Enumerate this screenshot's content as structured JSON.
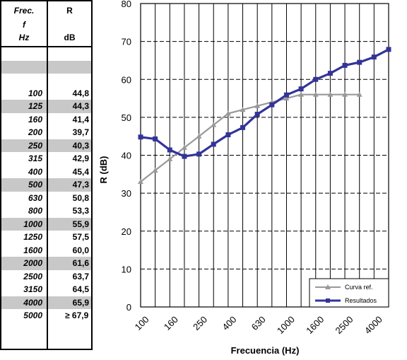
{
  "table": {
    "header_freq": [
      "Frec.",
      "f",
      "Hz"
    ],
    "header_r": [
      "R",
      "",
      "dB"
    ],
    "rows": [
      {
        "f": "",
        "r": "",
        "shade": false
      },
      {
        "f": "",
        "r": "",
        "shade": true
      },
      {
        "f": "",
        "r": "",
        "shade": false
      },
      {
        "f": "100",
        "r": "44,8",
        "shade": false
      },
      {
        "f": "125",
        "r": "44,3",
        "shade": true
      },
      {
        "f": "160",
        "r": "41,4",
        "shade": false
      },
      {
        "f": "200",
        "r": "39,7",
        "shade": false
      },
      {
        "f": "250",
        "r": "40,3",
        "shade": true
      },
      {
        "f": "315",
        "r": "42,9",
        "shade": false
      },
      {
        "f": "400",
        "r": "45,4",
        "shade": false
      },
      {
        "f": "500",
        "r": "47,3",
        "shade": true
      },
      {
        "f": "630",
        "r": "50,8",
        "shade": false
      },
      {
        "f": "800",
        "r": "53,3",
        "shade": false
      },
      {
        "f": "1000",
        "r": "55,9",
        "shade": true
      },
      {
        "f": "1250",
        "r": "57,5",
        "shade": false
      },
      {
        "f": "1600",
        "r": "60,0",
        "shade": false
      },
      {
        "f": "2000",
        "r": "61,6",
        "shade": true
      },
      {
        "f": "2500",
        "r": "63,7",
        "shade": false
      },
      {
        "f": "3150",
        "r": "64,5",
        "shade": false
      },
      {
        "f": "4000",
        "r": "65,9",
        "shade": true
      },
      {
        "f": "5000",
        "r": "≥ 67,9",
        "shade": false
      }
    ]
  },
  "chart_data": {
    "type": "line",
    "xlabel": "Frecuencia (Hz)",
    "ylabel": "R (dB)",
    "ylim": [
      0,
      80
    ],
    "yticks": [
      0,
      10,
      20,
      30,
      40,
      50,
      60,
      70,
      80
    ],
    "x_scale": "log (third-octave bands)",
    "categories": [
      "100",
      "125",
      "160",
      "200",
      "250",
      "315",
      "400",
      "500",
      "630",
      "800",
      "1000",
      "1250",
      "1600",
      "2000",
      "2500",
      "3150",
      "4000",
      "5000"
    ],
    "x_tick_labels": [
      "100",
      "160",
      "250",
      "400",
      "630",
      "1000",
      "1600",
      "2500",
      "4000"
    ],
    "grid": true,
    "legend_position": "bottom-right",
    "series": [
      {
        "name": "Curva ref.",
        "color": "#999999",
        "marker": "triangle",
        "values": [
          33,
          36,
          39,
          42,
          45,
          48,
          51,
          52,
          53,
          54,
          55,
          56,
          56,
          56,
          56,
          56,
          null,
          null
        ]
      },
      {
        "name": "Resultados",
        "color": "#33339a",
        "marker": "square",
        "values": [
          44.8,
          44.3,
          41.4,
          39.7,
          40.3,
          42.9,
          45.4,
          47.3,
          50.8,
          53.3,
          55.9,
          57.5,
          60.0,
          61.6,
          63.7,
          64.5,
          65.9,
          67.9
        ]
      }
    ]
  }
}
